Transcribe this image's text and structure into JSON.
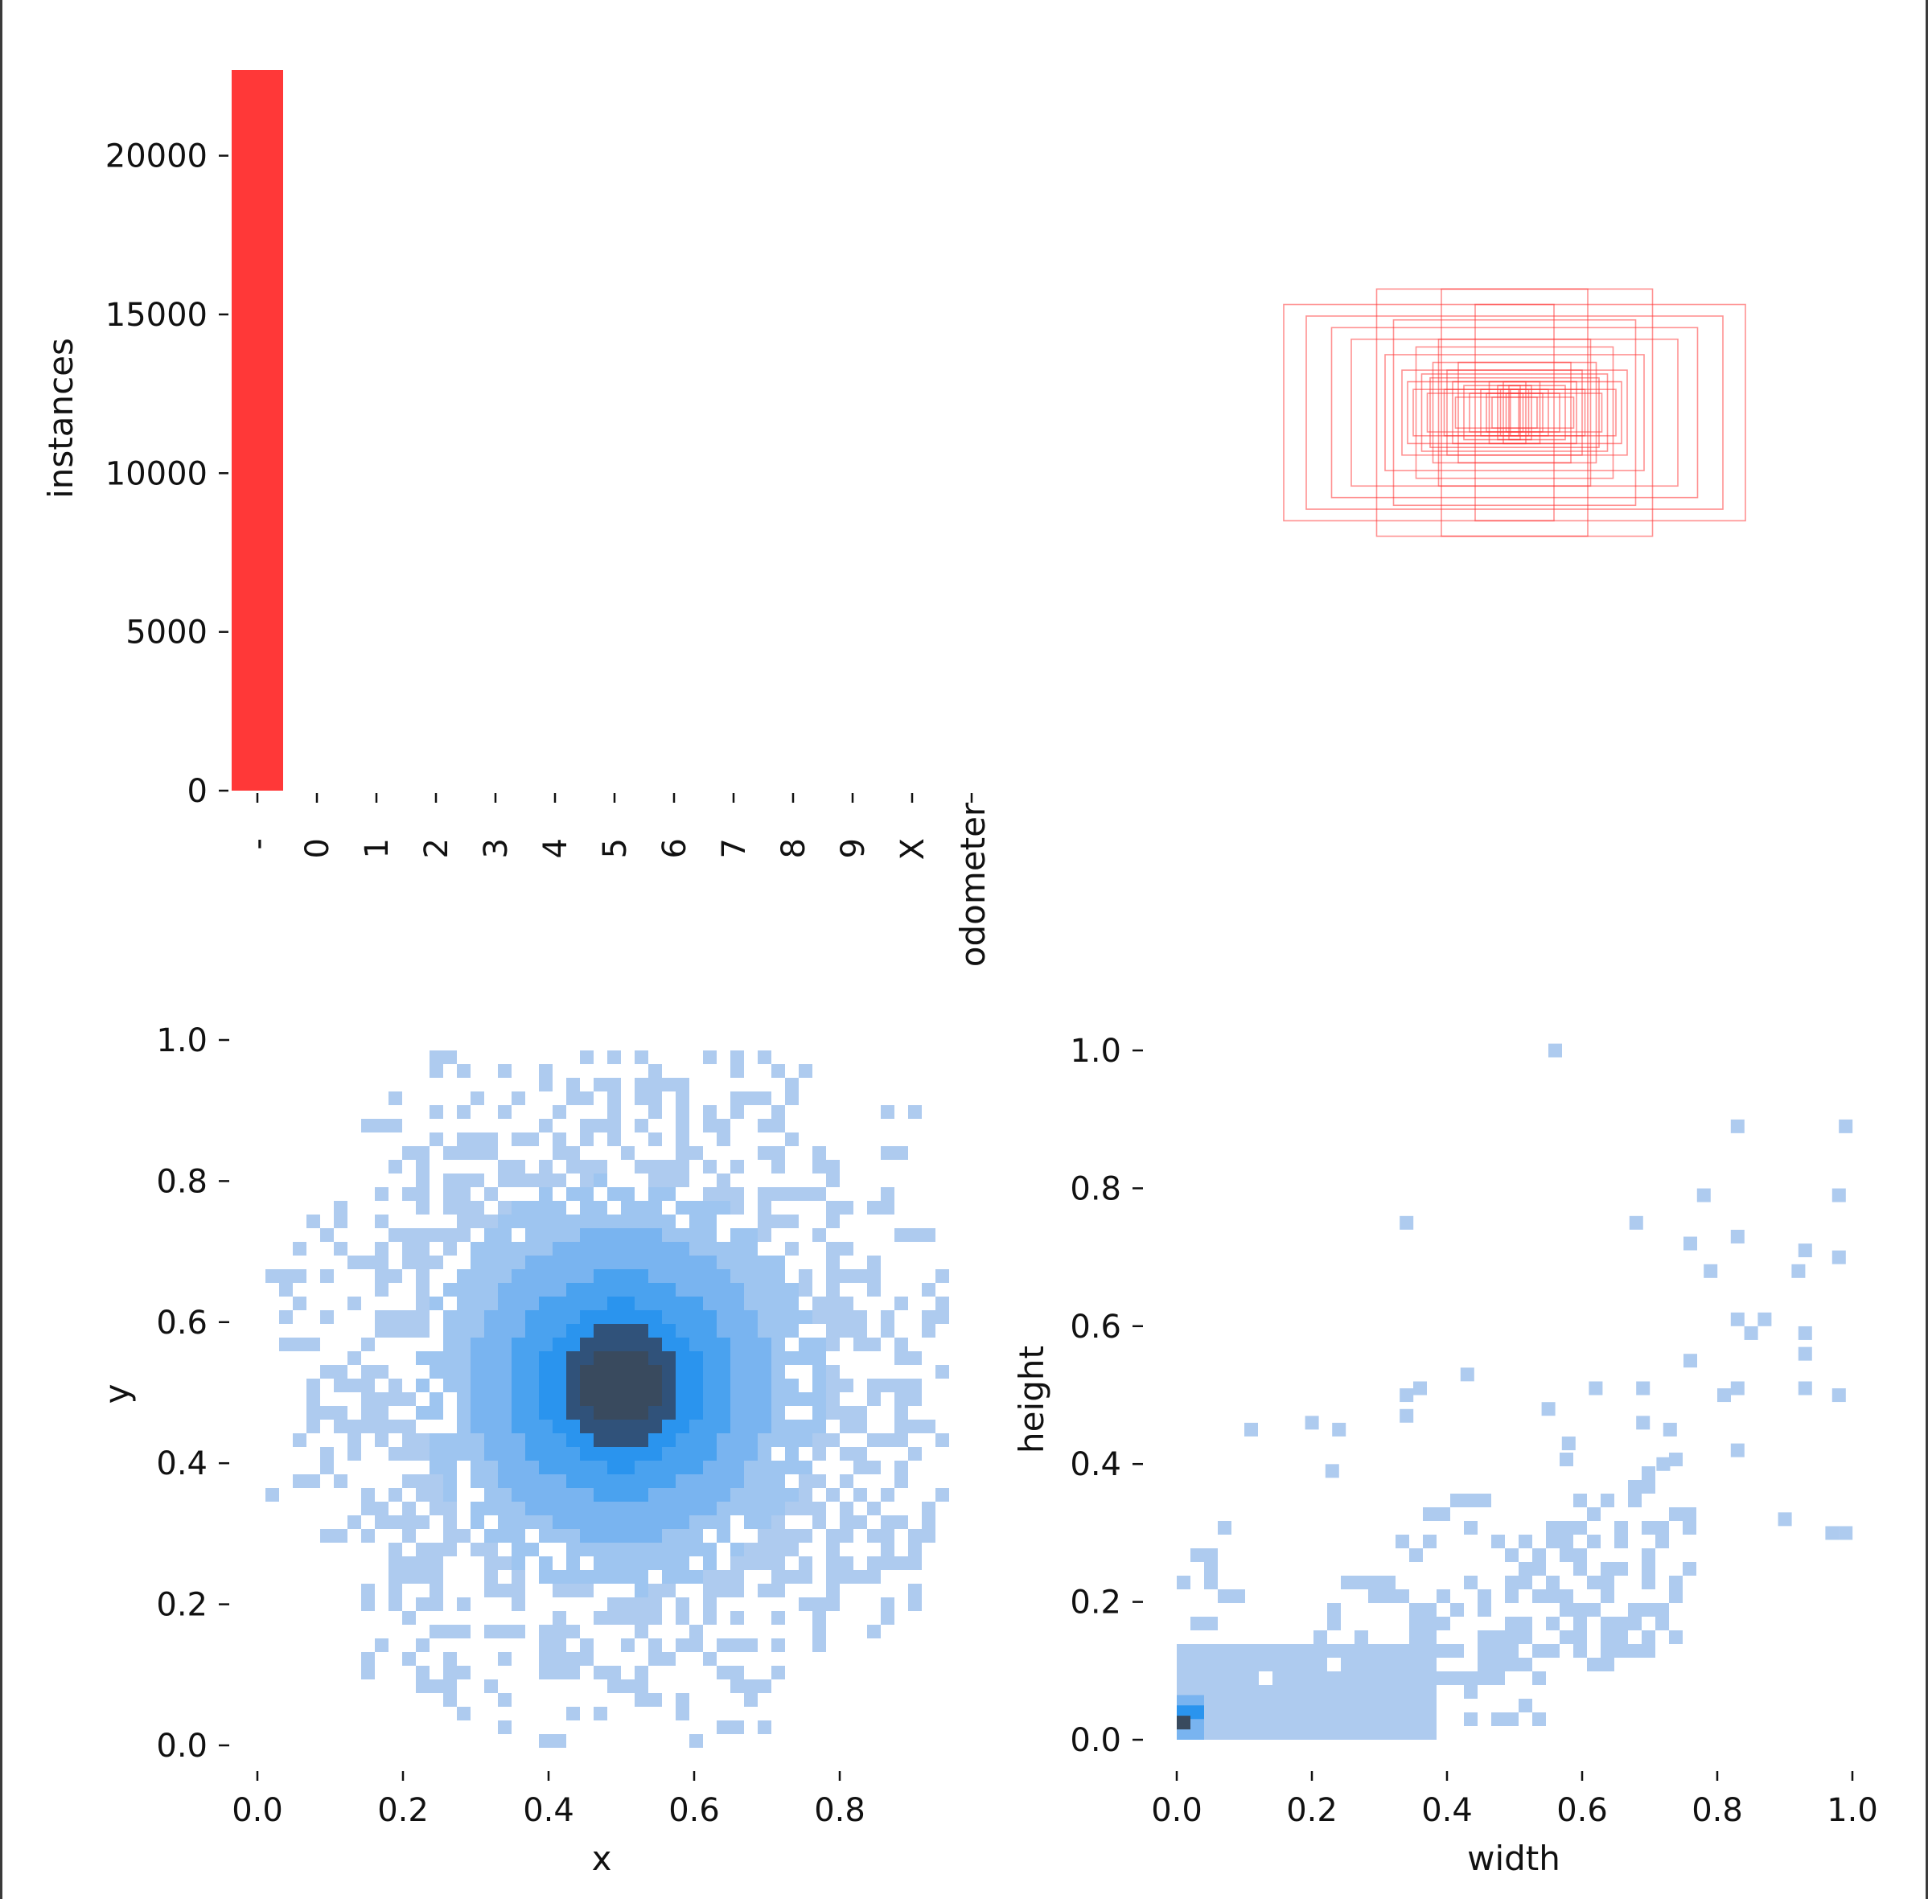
{
  "chart_data": [
    {
      "type": "bar",
      "categories": [
        "-",
        "0",
        "1",
        "2",
        "3",
        "4",
        "5",
        "6",
        "7",
        "8",
        "9",
        "X"
      ],
      "values": [
        22700,
        0,
        0,
        0,
        0,
        0,
        0,
        0,
        0,
        0,
        0,
        0
      ],
      "xlabel": "odometer",
      "ylabel": "instances",
      "ylim": [
        0,
        22700
      ],
      "yticks": [
        "0",
        "5000",
        "10000",
        "15000",
        "20000"
      ],
      "bar_color": "#ff3838"
    },
    {
      "type": "boxes",
      "description_note": "",
      "rect_color": "#ff3838",
      "boxes_wh": [
        [
          0.82,
          0.28
        ],
        [
          0.74,
          0.25
        ],
        [
          0.49,
          0.32
        ],
        [
          0.26,
          0.32
        ],
        [
          0.58,
          0.19
        ],
        [
          0.65,
          0.22
        ],
        [
          0.43,
          0.24
        ],
        [
          0.14,
          0.28
        ],
        [
          0.46,
          0.15
        ],
        [
          0.35,
          0.17
        ],
        [
          0.2,
          0.13
        ],
        [
          0.4,
          0.11
        ],
        [
          0.3,
          0.09
        ],
        [
          0.27,
          0.19
        ],
        [
          0.22,
          0.08
        ],
        [
          0.18,
          0.07
        ],
        [
          0.33,
          0.1
        ],
        [
          0.25,
          0.06
        ],
        [
          0.16,
          0.05
        ],
        [
          0.29,
          0.13
        ],
        [
          0.38,
          0.08
        ],
        [
          0.12,
          0.06
        ],
        [
          0.1,
          0.05
        ],
        [
          0.08,
          0.04
        ],
        [
          0.06,
          0.07
        ],
        [
          0.05,
          0.06
        ],
        [
          0.04,
          0.08
        ],
        [
          0.03,
          0.05
        ],
        [
          0.02,
          0.07
        ],
        [
          0.015,
          0.06
        ],
        [
          0.21,
          0.04
        ],
        [
          0.24,
          0.11
        ],
        [
          0.36,
          0.06
        ],
        [
          0.31,
          0.05
        ],
        [
          0.09,
          0.08
        ]
      ]
    },
    {
      "type": "heatmap",
      "xlabel": "x",
      "ylabel": "y",
      "xlim": [
        -0.02,
        0.95
      ],
      "ylim": [
        -0.02,
        1.0
      ],
      "xticks": [
        "0.0",
        "0.2",
        "0.4",
        "0.6",
        "0.8"
      ],
      "yticks": [
        "0.0",
        "0.2",
        "0.4",
        "0.6",
        "0.8",
        "1.0"
      ],
      "center": [
        0.49,
        0.52
      ],
      "colors": [
        "#aecbef",
        "#9ec5f0",
        "#79b4f0",
        "#4aa2ef",
        "#2a94ee",
        "#30527a",
        "#394a5e"
      ]
    },
    {
      "type": "heatmap",
      "xlabel": "width",
      "ylabel": "height",
      "xlim": [
        0.0,
        1.0
      ],
      "ylim": [
        -0.02,
        1.0
      ],
      "xticks": [
        "0.0",
        "0.2",
        "0.4",
        "0.6",
        "0.8",
        "1.0"
      ],
      "yticks": [
        "0.0",
        "0.2",
        "0.4",
        "0.6",
        "0.8",
        "1.0"
      ],
      "colors": [
        "#aecbef",
        "#79b4f0",
        "#2a94ee",
        "#394a5e"
      ]
    }
  ]
}
